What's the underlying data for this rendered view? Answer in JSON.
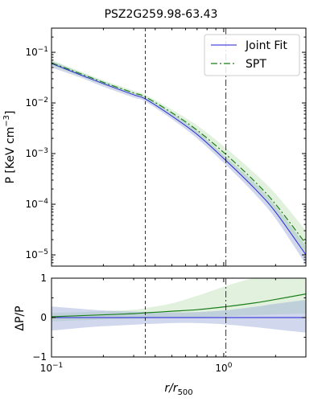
{
  "chart_data": {
    "type": "line",
    "title": "PSZ2G259.98-63.43",
    "top_panel": {
      "ylabel": "P [KeV cm$^{-3}$]",
      "yscale": "log",
      "ylim": [
        6e-06,
        0.3
      ],
      "y_ticks": [
        {
          "value": 1e-05,
          "base": "10",
          "exp": "−5"
        },
        {
          "value": 0.0001,
          "base": "10",
          "exp": "−4"
        },
        {
          "value": 0.001,
          "base": "10",
          "exp": "−3"
        },
        {
          "value": 0.01,
          "base": "10",
          "exp": "−2"
        },
        {
          "value": 0.1,
          "base": "10",
          "exp": "−1"
        }
      ],
      "legend": {
        "placement": "top-right",
        "entries": [
          "Joint Fit",
          "SPT"
        ]
      },
      "series": [
        {
          "name": "Joint Fit",
          "color": "#1f1fd6",
          "style": "solid",
          "x": [
            0.1,
            0.15,
            0.2,
            0.3,
            0.35,
            0.5,
            0.7,
            1.0,
            1.5,
            2.0,
            3.0
          ],
          "y": [
            0.06,
            0.035,
            0.024,
            0.0145,
            0.012,
            0.0055,
            0.0024,
            0.0008,
            0.00021,
            7e-05,
            1e-05
          ],
          "band_low": [
            0.05,
            0.031,
            0.021,
            0.0128,
            0.0107,
            0.0048,
            0.002,
            0.00066,
            0.000165,
            5.2e-05,
            6.5e-06
          ],
          "band_high": [
            0.068,
            0.039,
            0.0265,
            0.0158,
            0.0132,
            0.0062,
            0.0028,
            0.00094,
            0.00027,
            9.2e-05,
            1.5e-05
          ]
        },
        {
          "name": "SPT",
          "color": "#1a7f1a",
          "style": "dashdot",
          "x": [
            0.1,
            0.15,
            0.2,
            0.3,
            0.35,
            0.5,
            0.7,
            1.0,
            1.5,
            2.0,
            3.0
          ],
          "y": [
            0.062,
            0.037,
            0.0255,
            0.0158,
            0.0132,
            0.0064,
            0.0029,
            0.00105,
            0.00029,
            0.0001,
            1.65e-05
          ],
          "band_low": [
            0.055,
            0.033,
            0.023,
            0.0142,
            0.0118,
            0.0055,
            0.0024,
            0.00082,
            0.00021,
            7e-05,
            1e-05
          ],
          "band_high": [
            0.07,
            0.041,
            0.028,
            0.0175,
            0.0146,
            0.0074,
            0.0036,
            0.0014,
            0.00042,
            0.00016,
            3e-05
          ]
        }
      ]
    },
    "bottom_panel": {
      "ylabel": "ΔP/P",
      "ylim": [
        -1,
        1
      ],
      "y_ticks": [
        "−1",
        "0",
        "1"
      ],
      "series": [
        {
          "name": "Joint Fit",
          "color": "#1f1fd6",
          "x": [
            0.1,
            3.0
          ],
          "y": [
            0,
            0
          ],
          "band_x": [
            0.1,
            0.15,
            0.2,
            0.3,
            0.5,
            0.7,
            1.0,
            1.5,
            2.0,
            3.0
          ],
          "band_low": [
            -0.33,
            -0.26,
            -0.22,
            -0.18,
            -0.14,
            -0.14,
            -0.17,
            -0.24,
            -0.3,
            -0.38
          ],
          "band_high": [
            0.28,
            0.22,
            0.18,
            0.15,
            0.13,
            0.14,
            0.18,
            0.27,
            0.35,
            0.45
          ]
        },
        {
          "name": "SPT",
          "color": "#1a7f1a",
          "x": [
            0.1,
            0.15,
            0.2,
            0.3,
            0.35,
            0.5,
            0.7,
            1.0,
            1.5,
            2.0,
            3.0
          ],
          "y": [
            0.02,
            0.05,
            0.07,
            0.1,
            0.12,
            0.16,
            0.2,
            0.27,
            0.37,
            0.46,
            0.6
          ],
          "band_low": [
            -0.1,
            -0.07,
            -0.05,
            -0.03,
            -0.02,
            0.0,
            0.01,
            0.03,
            0.06,
            0.08,
            0.1
          ],
          "band_high": [
            0.12,
            0.14,
            0.16,
            0.2,
            0.24,
            0.36,
            0.55,
            0.78,
            1.0,
            1.0,
            1.0
          ]
        }
      ]
    },
    "x_axis": {
      "label_main": "r",
      "label_sub": "500",
      "scale": "log",
      "xlim": [
        0.1,
        3.0
      ],
      "ticks": [
        {
          "value": 0.1,
          "base": "10",
          "exp": "−1"
        },
        {
          "value": 1.0,
          "base": "10",
          "exp": "0"
        }
      ]
    },
    "vertical_lines": [
      {
        "x": 0.35,
        "style": "dashed"
      },
      {
        "x": 1.03,
        "style": "dashdot"
      }
    ]
  }
}
